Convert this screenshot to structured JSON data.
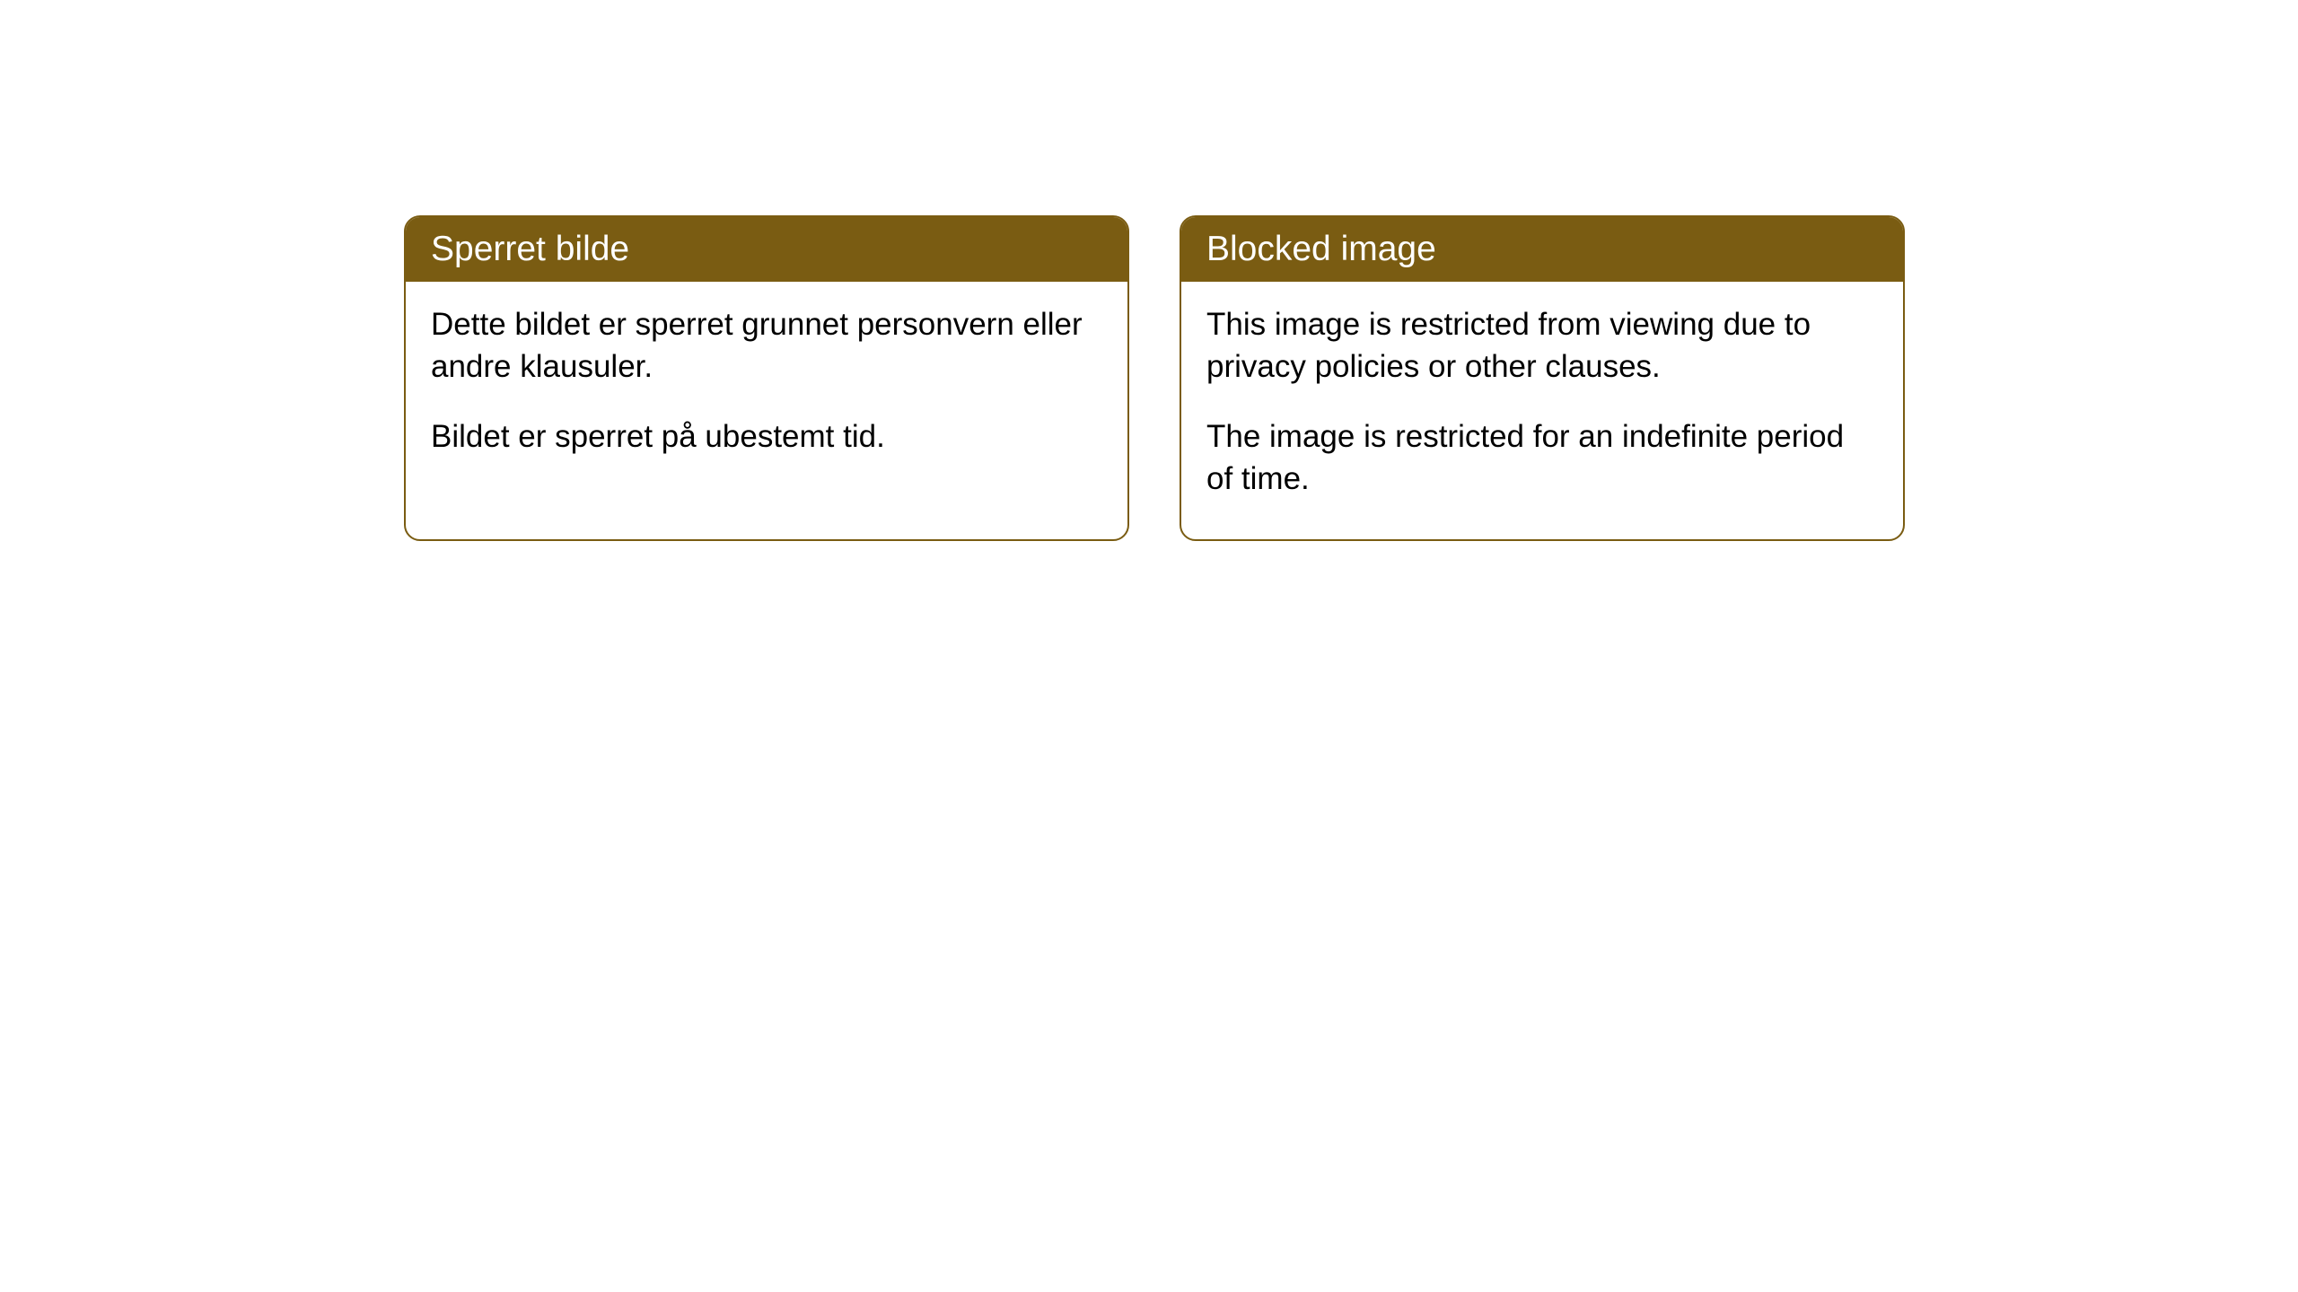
{
  "cards": [
    {
      "header": "Sperret bilde",
      "paragraph1": "Dette bildet er sperret grunnet personvern eller andre klausuler.",
      "paragraph2": "Bildet er sperret på ubestemt tid."
    },
    {
      "header": "Blocked image",
      "paragraph1": "This image is restricted from viewing due to privacy policies or other clauses.",
      "paragraph2": "The image is restricted for an indefinite period of time."
    }
  ],
  "styling": {
    "header_bg_color": "#7a5c12",
    "header_text_color": "#ffffff",
    "border_color": "#7a5c12",
    "body_bg_color": "#ffffff",
    "body_text_color": "#000000",
    "border_radius": "18px",
    "header_fontsize": "39px",
    "body_fontsize": "35px"
  }
}
